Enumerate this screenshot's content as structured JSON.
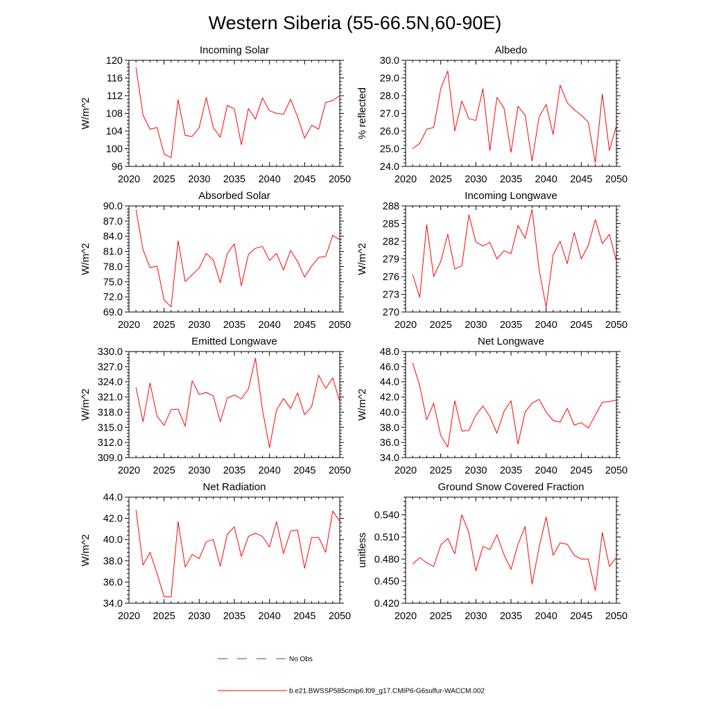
{
  "figure_title": "Western Siberia (55-66.5N,60-90E)",
  "legend": {
    "obs_label": "No Obs",
    "model_label": "b.e21.BWSSP585cmip6.f09_g17.CMIP6-G6sulfur-WACCM.002",
    "obs_color": "#3344cc",
    "model_color": "#ff0000"
  },
  "chart_data": [
    {
      "type": "line",
      "title": "Incoming Solar",
      "ylabel": "W/m^2",
      "xlim": [
        2020,
        2050
      ],
      "ylim": [
        96,
        120
      ],
      "xticks": [
        2020,
        2025,
        2030,
        2035,
        2040,
        2045,
        2050
      ],
      "xticklabels": [
        "2020",
        "2025",
        "2030",
        "2035",
        "2040",
        "2045",
        "2050"
      ],
      "yticks": [
        96,
        100,
        104,
        108,
        112,
        116,
        120
      ],
      "yticklabels": [
        "96",
        "100",
        "104",
        "108",
        "112",
        "116",
        "120"
      ],
      "x": [
        2021,
        2022,
        2023,
        2024,
        2025,
        2026,
        2027,
        2028,
        2029,
        2030,
        2031,
        2032,
        2033,
        2034,
        2035,
        2036,
        2037,
        2038,
        2039,
        2040,
        2041,
        2042,
        2043,
        2044,
        2045,
        2046,
        2047,
        2048,
        2049,
        2050
      ],
      "series": [
        {
          "color": "#ff0000",
          "values": [
            118.4,
            107.6,
            104.4,
            104.8,
            98.8,
            98.0,
            111.1,
            103.0,
            102.8,
            104.8,
            111.6,
            104.8,
            102.6,
            109.8,
            109.0,
            100.9,
            109.1,
            106.7,
            111.5,
            108.6,
            108.0,
            107.8,
            111.2,
            107.2,
            102.4,
            105.3,
            104.4,
            110.5,
            110.9,
            112.0
          ]
        }
      ]
    },
    {
      "type": "line",
      "title": "Albedo",
      "ylabel": "% reflected",
      "xlim": [
        2020,
        2050
      ],
      "ylim": [
        24,
        30
      ],
      "xticks": [
        2020,
        2025,
        2030,
        2035,
        2040,
        2045,
        2050
      ],
      "xticklabels": [
        "2020",
        "2025",
        "2030",
        "2035",
        "2040",
        "2045",
        "2050"
      ],
      "yticks": [
        24,
        25,
        26,
        27,
        28,
        29,
        30
      ],
      "yticklabels": [
        "24.0",
        "25.0",
        "26.0",
        "27.0",
        "28.0",
        "29.0",
        "30.0"
      ],
      "x": [
        2021,
        2022,
        2023,
        2024,
        2025,
        2026,
        2027,
        2028,
        2029,
        2030,
        2031,
        2032,
        2033,
        2034,
        2035,
        2036,
        2037,
        2038,
        2039,
        2040,
        2041,
        2042,
        2043,
        2044,
        2045,
        2046,
        2047,
        2048,
        2049,
        2050
      ],
      "series": [
        {
          "color": "#ff0000",
          "values": [
            25.0,
            25.3,
            26.1,
            26.2,
            28.4,
            29.4,
            26.0,
            27.7,
            26.7,
            26.6,
            28.4,
            24.9,
            27.9,
            27.3,
            24.8,
            27.4,
            26.9,
            24.3,
            26.8,
            27.5,
            25.8,
            28.6,
            27.6,
            27.2,
            26.9,
            26.5,
            24.2,
            28.1,
            24.9,
            26.3
          ]
        }
      ]
    },
    {
      "type": "line",
      "title": "Absorbed Solar",
      "ylabel": "W/m^2",
      "xlim": [
        2020,
        2050
      ],
      "ylim": [
        69,
        90
      ],
      "xticks": [
        2020,
        2025,
        2030,
        2035,
        2040,
        2045,
        2050
      ],
      "xticklabels": [
        "2020",
        "2025",
        "2030",
        "2035",
        "2040",
        "2045",
        "2050"
      ],
      "yticks": [
        69,
        72,
        75,
        78,
        81,
        84,
        87,
        90
      ],
      "yticklabels": [
        "69.0",
        "72.0",
        "75.0",
        "78.0",
        "81.0",
        "84.0",
        "87.0",
        "90.0"
      ],
      "x": [
        2021,
        2022,
        2023,
        2024,
        2025,
        2026,
        2027,
        2028,
        2029,
        2030,
        2031,
        2032,
        2033,
        2034,
        2035,
        2036,
        2037,
        2038,
        2039,
        2040,
        2041,
        2042,
        2043,
        2044,
        2045,
        2046,
        2047,
        2048,
        2049,
        2050
      ],
      "series": [
        {
          "color": "#ff0000",
          "values": [
            89.3,
            81.3,
            77.8,
            78.1,
            71.4,
            70.0,
            83.1,
            75.0,
            76.4,
            77.7,
            80.6,
            79.3,
            74.8,
            80.6,
            82.5,
            74.2,
            80.4,
            81.6,
            82.0,
            79.2,
            80.6,
            77.3,
            81.2,
            79.0,
            75.9,
            78.1,
            79.8,
            80.0,
            84.2,
            83.3
          ]
        }
      ]
    },
    {
      "type": "line",
      "title": "Incoming Longwave",
      "ylabel": "W/m^2",
      "xlim": [
        2020,
        2050
      ],
      "ylim": [
        270,
        288
      ],
      "xticks": [
        2020,
        2025,
        2030,
        2035,
        2040,
        2045,
        2050
      ],
      "xticklabels": [
        "2020",
        "2025",
        "2030",
        "2035",
        "2040",
        "2045",
        "2050"
      ],
      "yticks": [
        270,
        273,
        276,
        279,
        282,
        285,
        288
      ],
      "yticklabels": [
        "270",
        "273",
        "276",
        "279",
        "282",
        "285",
        "288"
      ],
      "x": [
        2021,
        2022,
        2023,
        2024,
        2025,
        2026,
        2027,
        2028,
        2029,
        2030,
        2031,
        2032,
        2033,
        2034,
        2035,
        2036,
        2037,
        2038,
        2039,
        2040,
        2041,
        2042,
        2043,
        2044,
        2045,
        2046,
        2047,
        2048,
        2049,
        2050
      ],
      "series": [
        {
          "color": "#ff0000",
          "values": [
            276.4,
            272.5,
            284.8,
            276.0,
            278.6,
            283.2,
            277.3,
            277.8,
            286.5,
            281.9,
            281.2,
            281.8,
            279.0,
            280.4,
            279.9,
            284.7,
            282.5,
            287.4,
            277.2,
            270.8,
            279.7,
            282.0,
            278.2,
            283.5,
            279.0,
            281.3,
            285.7,
            281.6,
            283.2,
            278.6
          ]
        }
      ]
    },
    {
      "type": "line",
      "title": "Emitted Longwave",
      "ylabel": "W/m^2",
      "xlim": [
        2020,
        2050
      ],
      "ylim": [
        309,
        330
      ],
      "xticks": [
        2020,
        2025,
        2030,
        2035,
        2040,
        2045,
        2050
      ],
      "xticklabels": [
        "2020",
        "2025",
        "2030",
        "2035",
        "2040",
        "2045",
        "2050"
      ],
      "yticks": [
        309,
        312,
        315,
        318,
        321,
        324,
        327,
        330
      ],
      "yticklabels": [
        "309.0",
        "312.0",
        "315.0",
        "318.0",
        "321.0",
        "324.0",
        "327.0",
        "330.0"
      ],
      "x": [
        2021,
        2022,
        2023,
        2024,
        2025,
        2026,
        2027,
        2028,
        2029,
        2030,
        2031,
        2032,
        2033,
        2034,
        2035,
        2036,
        2037,
        2038,
        2039,
        2040,
        2041,
        2042,
        2043,
        2044,
        2045,
        2046,
        2047,
        2048,
        2049,
        2050
      ],
      "series": [
        {
          "color": "#ff0000",
          "values": [
            322.9,
            316.1,
            323.8,
            317.2,
            315.4,
            318.5,
            318.6,
            315.2,
            324.2,
            321.5,
            321.9,
            321.2,
            316.1,
            320.8,
            321.4,
            320.6,
            322.6,
            328.7,
            318.5,
            311.0,
            318.4,
            320.7,
            318.7,
            321.8,
            317.5,
            319.1,
            325.3,
            322.7,
            324.8,
            320.1
          ]
        }
      ]
    },
    {
      "type": "line",
      "title": "Net Longwave",
      "ylabel": "W/m^2",
      "xlim": [
        2020,
        2050
      ],
      "ylim": [
        34,
        48
      ],
      "xticks": [
        2020,
        2025,
        2030,
        2035,
        2040,
        2045,
        2050
      ],
      "xticklabels": [
        "2020",
        "2025",
        "2030",
        "2035",
        "2040",
        "2045",
        "2050"
      ],
      "yticks": [
        34,
        36,
        38,
        40,
        42,
        44,
        46,
        48
      ],
      "yticklabels": [
        "34.0",
        "36.0",
        "38.0",
        "40.0",
        "42.0",
        "44.0",
        "46.0",
        "48.0"
      ],
      "x": [
        2021,
        2022,
        2023,
        2024,
        2025,
        2026,
        2027,
        2028,
        2029,
        2030,
        2031,
        2032,
        2033,
        2034,
        2035,
        2036,
        2037,
        2038,
        2039,
        2040,
        2041,
        2042,
        2043,
        2044,
        2045,
        2046,
        2047,
        2048,
        2049,
        2050
      ],
      "series": [
        {
          "color": "#ff0000",
          "values": [
            46.5,
            43.5,
            39.0,
            41.2,
            36.9,
            35.4,
            41.5,
            37.5,
            37.6,
            39.6,
            40.8,
            39.4,
            37.2,
            40.1,
            41.5,
            35.8,
            40.0,
            41.2,
            41.7,
            40.0,
            38.9,
            38.7,
            40.5,
            38.3,
            38.6,
            37.9,
            39.6,
            41.3,
            41.4,
            41.6
          ]
        }
      ]
    },
    {
      "type": "line",
      "title": "Net Radiation",
      "ylabel": "W/m^2",
      "xlim": [
        2020,
        2050
      ],
      "ylim": [
        34,
        44
      ],
      "xticks": [
        2020,
        2025,
        2030,
        2035,
        2040,
        2045,
        2050
      ],
      "xticklabels": [
        "2020",
        "2025",
        "2030",
        "2035",
        "2040",
        "2045",
        "2050"
      ],
      "yticks": [
        34,
        36,
        38,
        40,
        42,
        44
      ],
      "yticklabels": [
        "34.0",
        "36.0",
        "38.0",
        "40.0",
        "42.0",
        "44.0"
      ],
      "x": [
        2021,
        2022,
        2023,
        2024,
        2025,
        2026,
        2027,
        2028,
        2029,
        2030,
        2031,
        2032,
        2033,
        2034,
        2035,
        2036,
        2037,
        2038,
        2039,
        2040,
        2041,
        2042,
        2043,
        2044,
        2045,
        2046,
        2047,
        2048,
        2049,
        2050
      ],
      "series": [
        {
          "color": "#ff0000",
          "values": [
            42.8,
            37.6,
            38.8,
            36.8,
            34.6,
            34.6,
            41.7,
            37.4,
            38.6,
            38.2,
            39.8,
            40.0,
            37.5,
            40.5,
            41.2,
            38.4,
            40.3,
            40.6,
            40.3,
            39.3,
            41.7,
            38.7,
            40.8,
            40.9,
            37.3,
            40.2,
            40.2,
            38.8,
            42.7,
            41.7
          ]
        }
      ]
    },
    {
      "type": "line",
      "title": "Ground Snow Covered Fraction",
      "ylabel": "unitless",
      "xlim": [
        2020,
        2050
      ],
      "ylim": [
        0.42,
        0.564
      ],
      "xticks": [
        2020,
        2025,
        2030,
        2035,
        2040,
        2045,
        2050
      ],
      "xticklabels": [
        "2020",
        "2025",
        "2030",
        "2035",
        "2040",
        "2045",
        "2050"
      ],
      "yticks": [
        0.42,
        0.45,
        0.48,
        0.51,
        0.54
      ],
      "yticklabels": [
        "0.420",
        "0.450",
        "0.480",
        "0.510",
        "0.540"
      ],
      "x": [
        2021,
        2022,
        2023,
        2024,
        2025,
        2026,
        2027,
        2028,
        2029,
        2030,
        2031,
        2032,
        2033,
        2034,
        2035,
        2036,
        2037,
        2038,
        2039,
        2040,
        2041,
        2042,
        2043,
        2044,
        2045,
        2046,
        2047,
        2048,
        2049,
        2050
      ],
      "series": [
        {
          "color": "#ff0000",
          "values": [
            0.473,
            0.482,
            0.475,
            0.47,
            0.499,
            0.508,
            0.487,
            0.54,
            0.516,
            0.464,
            0.497,
            0.493,
            0.513,
            0.486,
            0.466,
            0.5,
            0.524,
            0.446,
            0.496,
            0.537,
            0.485,
            0.502,
            0.5,
            0.485,
            0.48,
            0.48,
            0.437,
            0.516,
            0.47,
            0.482
          ]
        }
      ]
    }
  ]
}
